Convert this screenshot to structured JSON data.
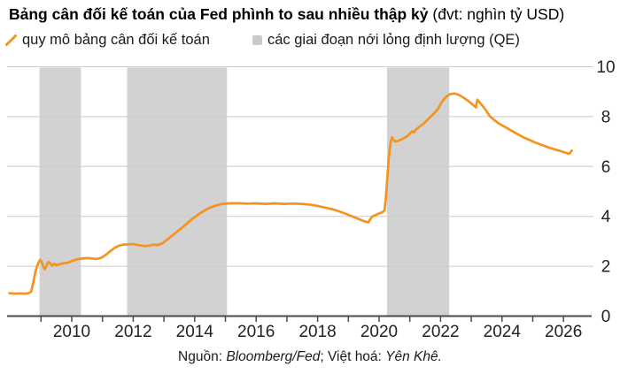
{
  "title": {
    "main": "Bảng cân đối kế toán của Fed phình to sau nhiều thập kỷ",
    "unit": " (đvt: nghìn tỷ USD)"
  },
  "legend": {
    "series_label": "quy mô bảng cân đối kế toán",
    "qe_label": "các giai đoạn nới lỏng định lượng (QE)"
  },
  "source": {
    "prefix": "Nguồn: ",
    "publisher": "Bloomberg/Fed",
    "separator": "; ",
    "viet_prefix": "Việt hoá: ",
    "translator": "Yên Khê."
  },
  "colors": {
    "line_orange": "#F6921E",
    "qe_band_gray": "#D2D2D2",
    "legend_square_gray": "#C8CBCB",
    "gridline_gray": "#CBCBCB",
    "axis_dark": "#4A4B4D",
    "tick_label_dark": "#222222"
  },
  "chart_data": {
    "type": "line",
    "title": "Bảng cân đối kế toán của Fed phình to sau nhiều thập kỷ",
    "unit": "nghìn tỷ USD",
    "ylabel": "nghìn tỷ USD",
    "x_range": [
      2008,
      2027
    ],
    "ylim": [
      0,
      10
    ],
    "y_ticks": [
      0,
      2,
      4,
      6,
      8,
      10
    ],
    "y_axis_side": "right",
    "grid": "horizontal-only",
    "legend_position": "top-left",
    "x_minor_ticks": [
      2009,
      2010,
      2011,
      2012,
      2013,
      2014,
      2015,
      2016,
      2017,
      2018,
      2019,
      2020,
      2021,
      2022,
      2023,
      2024,
      2025,
      2026
    ],
    "x_tick_labels": [
      2010,
      2012,
      2014,
      2016,
      2018,
      2020,
      2022,
      2024,
      2026
    ],
    "qe_bands": [
      {
        "start": 2008.95,
        "end": 2010.3
      },
      {
        "start": 2011.8,
        "end": 2015.05
      },
      {
        "start": 2020.26,
        "end": 2022.28
      }
    ],
    "series": [
      {
        "name": "quy mô bảng cân đối kế toán",
        "color": "#F6921E",
        "points": [
          [
            2007.97,
            0.92
          ],
          [
            2008.15,
            0.9
          ],
          [
            2008.3,
            0.91
          ],
          [
            2008.45,
            0.9
          ],
          [
            2008.6,
            0.92
          ],
          [
            2008.68,
            0.98
          ],
          [
            2008.75,
            1.35
          ],
          [
            2008.82,
            1.8
          ],
          [
            2008.9,
            2.1
          ],
          [
            2008.97,
            2.26
          ],
          [
            2009.02,
            2.18
          ],
          [
            2009.07,
            2.0
          ],
          [
            2009.12,
            1.88
          ],
          [
            2009.18,
            2.02
          ],
          [
            2009.24,
            2.17
          ],
          [
            2009.3,
            2.12
          ],
          [
            2009.36,
            2.02
          ],
          [
            2009.42,
            2.1
          ],
          [
            2009.5,
            2.04
          ],
          [
            2009.6,
            2.08
          ],
          [
            2009.75,
            2.12
          ],
          [
            2009.9,
            2.15
          ],
          [
            2010.0,
            2.21
          ],
          [
            2010.15,
            2.27
          ],
          [
            2010.3,
            2.3
          ],
          [
            2010.5,
            2.33
          ],
          [
            2010.65,
            2.31
          ],
          [
            2010.8,
            2.29
          ],
          [
            2010.95,
            2.33
          ],
          [
            2011.1,
            2.45
          ],
          [
            2011.25,
            2.6
          ],
          [
            2011.4,
            2.74
          ],
          [
            2011.55,
            2.83
          ],
          [
            2011.7,
            2.87
          ],
          [
            2011.85,
            2.88
          ],
          [
            2012.0,
            2.89
          ],
          [
            2012.1,
            2.86
          ],
          [
            2012.25,
            2.83
          ],
          [
            2012.4,
            2.81
          ],
          [
            2012.55,
            2.83
          ],
          [
            2012.65,
            2.87
          ],
          [
            2012.8,
            2.85
          ],
          [
            2012.95,
            2.92
          ],
          [
            2013.1,
            3.06
          ],
          [
            2013.3,
            3.26
          ],
          [
            2013.5,
            3.46
          ],
          [
            2013.7,
            3.66
          ],
          [
            2013.9,
            3.88
          ],
          [
            2014.1,
            4.06
          ],
          [
            2014.3,
            4.22
          ],
          [
            2014.5,
            4.35
          ],
          [
            2014.7,
            4.44
          ],
          [
            2014.9,
            4.5
          ],
          [
            2015.1,
            4.52
          ],
          [
            2015.4,
            4.53
          ],
          [
            2015.7,
            4.51
          ],
          [
            2016.0,
            4.52
          ],
          [
            2016.3,
            4.5
          ],
          [
            2016.6,
            4.52
          ],
          [
            2016.9,
            4.5
          ],
          [
            2017.2,
            4.51
          ],
          [
            2017.5,
            4.5
          ],
          [
            2017.8,
            4.46
          ],
          [
            2018.0,
            4.42
          ],
          [
            2018.25,
            4.35
          ],
          [
            2018.5,
            4.28
          ],
          [
            2018.75,
            4.18
          ],
          [
            2019.0,
            4.06
          ],
          [
            2019.2,
            3.96
          ],
          [
            2019.4,
            3.86
          ],
          [
            2019.55,
            3.79
          ],
          [
            2019.65,
            3.76
          ],
          [
            2019.72,
            3.9
          ],
          [
            2019.78,
            4.0
          ],
          [
            2019.9,
            4.06
          ],
          [
            2020.0,
            4.12
          ],
          [
            2020.1,
            4.16
          ],
          [
            2020.18,
            4.24
          ],
          [
            2020.22,
            4.7
          ],
          [
            2020.27,
            5.6
          ],
          [
            2020.32,
            6.4
          ],
          [
            2020.38,
            7.0
          ],
          [
            2020.42,
            7.17
          ],
          [
            2020.46,
            7.08
          ],
          [
            2020.52,
            7.0
          ],
          [
            2020.62,
            7.03
          ],
          [
            2020.75,
            7.1
          ],
          [
            2020.9,
            7.2
          ],
          [
            2021.0,
            7.32
          ],
          [
            2021.08,
            7.42
          ],
          [
            2021.13,
            7.36
          ],
          [
            2021.2,
            7.48
          ],
          [
            2021.3,
            7.58
          ],
          [
            2021.45,
            7.72
          ],
          [
            2021.6,
            7.9
          ],
          [
            2021.75,
            8.08
          ],
          [
            2021.9,
            8.28
          ],
          [
            2022.05,
            8.6
          ],
          [
            2022.15,
            8.76
          ],
          [
            2022.3,
            8.9
          ],
          [
            2022.45,
            8.93
          ],
          [
            2022.6,
            8.87
          ],
          [
            2022.75,
            8.76
          ],
          [
            2022.9,
            8.63
          ],
          [
            2023.05,
            8.48
          ],
          [
            2023.15,
            8.37
          ],
          [
            2023.2,
            8.68
          ],
          [
            2023.3,
            8.53
          ],
          [
            2023.45,
            8.3
          ],
          [
            2023.6,
            8.02
          ],
          [
            2023.75,
            7.86
          ],
          [
            2023.9,
            7.72
          ],
          [
            2024.1,
            7.58
          ],
          [
            2024.3,
            7.44
          ],
          [
            2024.5,
            7.3
          ],
          [
            2024.7,
            7.17
          ],
          [
            2024.9,
            7.06
          ],
          [
            2025.1,
            6.95
          ],
          [
            2025.3,
            6.86
          ],
          [
            2025.5,
            6.77
          ],
          [
            2025.7,
            6.69
          ],
          [
            2025.9,
            6.62
          ],
          [
            2026.05,
            6.56
          ],
          [
            2026.15,
            6.51
          ],
          [
            2026.2,
            6.53
          ],
          [
            2026.27,
            6.64
          ]
        ]
      }
    ]
  }
}
